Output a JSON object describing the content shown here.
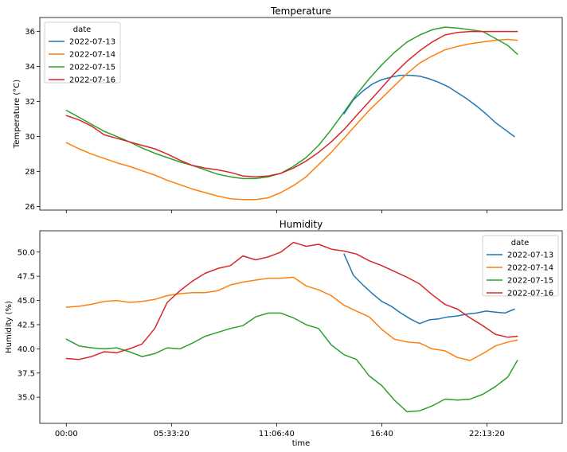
{
  "series_names": [
    "2022-07-13",
    "2022-07-14",
    "2022-07-15",
    "2022-07-16"
  ],
  "colors": {
    "2022-07-13": "#1f77b4",
    "2022-07-14": "#ff7f0e",
    "2022-07-15": "#2ca02c",
    "2022-07-16": "#d62728"
  },
  "chart_data": [
    {
      "type": "line",
      "title": "Temperature",
      "xlabel": "",
      "ylabel": "Temperature (°C)",
      "legend_title": "date",
      "legend_position": "top-left",
      "x_unit": "hours",
      "xlim": [
        -1.4,
        26.2
      ],
      "ylim": [
        25.8,
        36.8
      ],
      "yticks": [
        26,
        28,
        30,
        32,
        34,
        36
      ],
      "xticks": [
        {
          "value": 0,
          "label": ""
        },
        {
          "value": 5.5556,
          "label": ""
        },
        {
          "value": 11.1111,
          "label": ""
        },
        {
          "value": 16.6667,
          "label": ""
        },
        {
          "value": 22.2222,
          "label": ""
        }
      ],
      "series": [
        {
          "name": "2022-07-13",
          "x": [
            14.67,
            15.17,
            15.67,
            16.17,
            16.67,
            17.17,
            17.67,
            18.17,
            18.67,
            19.17,
            19.67,
            20.17,
            20.67,
            21.17,
            21.67,
            22.17,
            22.67,
            23.17,
            23.67
          ],
          "y": [
            31.3,
            32.1,
            32.6,
            33.0,
            33.25,
            33.4,
            33.5,
            33.5,
            33.45,
            33.3,
            33.1,
            32.85,
            32.5,
            32.15,
            31.75,
            31.3,
            30.8,
            30.4,
            30.0
          ]
        },
        {
          "name": "2022-07-14",
          "x": [
            0,
            0.67,
            1.33,
            2.0,
            2.67,
            3.33,
            4.0,
            4.67,
            5.33,
            6.0,
            6.67,
            7.33,
            8.0,
            8.67,
            9.33,
            10.0,
            10.67,
            11.33,
            12.0,
            12.67,
            13.33,
            14.0,
            14.67,
            15.33,
            16.0,
            16.67,
            17.33,
            18.0,
            18.67,
            19.33,
            20.0,
            20.67,
            21.33,
            22.0,
            22.67,
            23.33,
            23.83
          ],
          "y": [
            29.65,
            29.3,
            29.0,
            28.75,
            28.5,
            28.3,
            28.05,
            27.8,
            27.5,
            27.25,
            27.0,
            26.8,
            26.6,
            26.45,
            26.4,
            26.4,
            26.5,
            26.8,
            27.2,
            27.7,
            28.4,
            29.1,
            29.9,
            30.7,
            31.5,
            32.2,
            32.9,
            33.6,
            34.2,
            34.6,
            34.95,
            35.15,
            35.3,
            35.4,
            35.5,
            35.55,
            35.5
          ]
        },
        {
          "name": "2022-07-15",
          "x": [
            0,
            0.67,
            1.33,
            2.0,
            2.67,
            3.33,
            4.0,
            4.67,
            5.33,
            6.0,
            6.67,
            7.33,
            8.0,
            8.67,
            9.33,
            10.0,
            10.67,
            11.33,
            12.0,
            12.67,
            13.33,
            14.0,
            14.67,
            15.33,
            16.0,
            16.67,
            17.33,
            18.0,
            18.67,
            19.33,
            20.0,
            20.67,
            21.33,
            22.0,
            22.67,
            23.33,
            23.83
          ],
          "y": [
            31.5,
            31.1,
            30.7,
            30.3,
            30.0,
            29.7,
            29.35,
            29.05,
            28.8,
            28.55,
            28.35,
            28.1,
            27.85,
            27.7,
            27.6,
            27.6,
            27.7,
            27.9,
            28.3,
            28.8,
            29.5,
            30.4,
            31.4,
            32.4,
            33.3,
            34.1,
            34.8,
            35.4,
            35.8,
            36.1,
            36.25,
            36.2,
            36.1,
            36.0,
            35.6,
            35.2,
            34.7
          ]
        },
        {
          "name": "2022-07-16",
          "x": [
            0,
            0.67,
            1.33,
            2.0,
            2.67,
            3.33,
            4.0,
            4.67,
            5.33,
            6.0,
            6.67,
            7.33,
            8.0,
            8.67,
            9.33,
            10.0,
            10.67,
            11.33,
            12.0,
            12.67,
            13.33,
            14.0,
            14.67,
            15.33,
            16.0,
            16.67,
            17.33,
            18.0,
            18.67,
            19.33,
            20.0,
            20.67,
            21.33,
            22.0,
            22.67,
            23.33,
            23.83
          ],
          "y": [
            31.2,
            30.95,
            30.6,
            30.1,
            29.9,
            29.7,
            29.5,
            29.3,
            29.0,
            28.65,
            28.35,
            28.2,
            28.1,
            27.95,
            27.75,
            27.7,
            27.75,
            27.9,
            28.2,
            28.6,
            29.1,
            29.7,
            30.4,
            31.2,
            32.0,
            32.8,
            33.6,
            34.3,
            34.9,
            35.4,
            35.8,
            35.95,
            36.0,
            36.0,
            36.0,
            36.0,
            36.0
          ]
        }
      ]
    },
    {
      "type": "line",
      "title": "Humidity",
      "xlabel": "time",
      "ylabel": "Humidity (%)",
      "legend_title": "date",
      "legend_position": "top-right",
      "x_unit": "hours",
      "xlim": [
        -1.4,
        26.2
      ],
      "ylim": [
        32.3,
        52.2
      ],
      "yticks": [
        35.0,
        37.5,
        40.0,
        42.5,
        45.0,
        47.5,
        50.0
      ],
      "ytick_labels": [
        "35.0",
        "37.5",
        "40.0",
        "42.5",
        "45.0",
        "47.5",
        "50.0"
      ],
      "xticks": [
        {
          "value": 0,
          "label": "00:00"
        },
        {
          "value": 5.5556,
          "label": "05:33:20"
        },
        {
          "value": 11.1111,
          "label": "11:06:40"
        },
        {
          "value": 16.6667,
          "label": "16:40"
        },
        {
          "value": 22.2222,
          "label": "22:13:20"
        }
      ],
      "series": [
        {
          "name": "2022-07-13",
          "x": [
            14.67,
            15.17,
            15.67,
            16.17,
            16.67,
            17.17,
            17.67,
            18.17,
            18.67,
            19.17,
            19.67,
            20.17,
            20.67,
            21.17,
            21.67,
            22.17,
            22.67,
            23.17,
            23.67
          ],
          "y": [
            49.8,
            47.6,
            46.6,
            45.7,
            44.9,
            44.4,
            43.7,
            43.1,
            42.6,
            43.0,
            43.1,
            43.3,
            43.4,
            43.6,
            43.7,
            43.9,
            43.8,
            43.7,
            44.1
          ]
        },
        {
          "name": "2022-07-14",
          "x": [
            0,
            0.67,
            1.33,
            2.0,
            2.67,
            3.33,
            4.0,
            4.67,
            5.33,
            6.0,
            6.67,
            7.33,
            8.0,
            8.67,
            9.33,
            10.0,
            10.67,
            11.33,
            12.0,
            12.67,
            13.33,
            14.0,
            14.67,
            15.33,
            16.0,
            16.67,
            17.33,
            18.0,
            18.67,
            19.33,
            20.0,
            20.67,
            21.33,
            22.0,
            22.67,
            23.33,
            23.83
          ],
          "y": [
            44.3,
            44.4,
            44.6,
            44.9,
            45.0,
            44.8,
            44.9,
            45.1,
            45.5,
            45.7,
            45.8,
            45.8,
            46.0,
            46.6,
            46.9,
            47.1,
            47.3,
            47.3,
            47.4,
            46.5,
            46.1,
            45.5,
            44.5,
            43.9,
            43.3,
            42.0,
            41.0,
            40.7,
            40.6,
            40.0,
            39.8,
            39.1,
            38.8,
            39.5,
            40.3,
            40.7,
            40.9
          ]
        },
        {
          "name": "2022-07-15",
          "x": [
            0,
            0.67,
            1.33,
            2.0,
            2.67,
            3.33,
            4.0,
            4.67,
            5.33,
            6.0,
            6.67,
            7.33,
            8.0,
            8.67,
            9.33,
            10.0,
            10.67,
            11.33,
            12.0,
            12.67,
            13.33,
            14.0,
            14.67,
            15.33,
            16.0,
            16.67,
            17.33,
            18.0,
            18.67,
            19.33,
            20.0,
            20.67,
            21.33,
            22.0,
            22.67,
            23.33,
            23.83
          ],
          "y": [
            41.0,
            40.3,
            40.1,
            40.0,
            40.1,
            39.7,
            39.2,
            39.5,
            40.1,
            40.0,
            40.6,
            41.3,
            41.7,
            42.1,
            42.4,
            43.3,
            43.7,
            43.7,
            43.2,
            42.5,
            42.1,
            40.4,
            39.4,
            38.9,
            37.2,
            36.2,
            34.7,
            33.5,
            33.6,
            34.1,
            34.8,
            34.7,
            34.8,
            35.3,
            36.1,
            37.1,
            38.8
          ]
        },
        {
          "name": "2022-07-16",
          "x": [
            0,
            0.67,
            1.33,
            2.0,
            2.67,
            3.33,
            4.0,
            4.67,
            5.33,
            6.0,
            6.67,
            7.33,
            8.0,
            8.67,
            9.33,
            10.0,
            10.67,
            11.33,
            12.0,
            12.67,
            13.33,
            14.0,
            14.67,
            15.33,
            16.0,
            16.67,
            17.33,
            18.0,
            18.67,
            19.33,
            20.0,
            20.67,
            21.33,
            22.0,
            22.67,
            23.33,
            23.83
          ],
          "y": [
            39.0,
            38.9,
            39.2,
            39.7,
            39.6,
            40.0,
            40.5,
            42.1,
            44.8,
            46.0,
            47.0,
            47.8,
            48.3,
            48.6,
            49.6,
            49.2,
            49.5,
            50.0,
            51.0,
            50.6,
            50.8,
            50.3,
            50.1,
            49.8,
            49.1,
            48.6,
            48.0,
            47.4,
            46.7,
            45.6,
            44.6,
            44.1,
            43.2,
            42.4,
            41.5,
            41.2,
            41.3
          ]
        }
      ]
    }
  ]
}
